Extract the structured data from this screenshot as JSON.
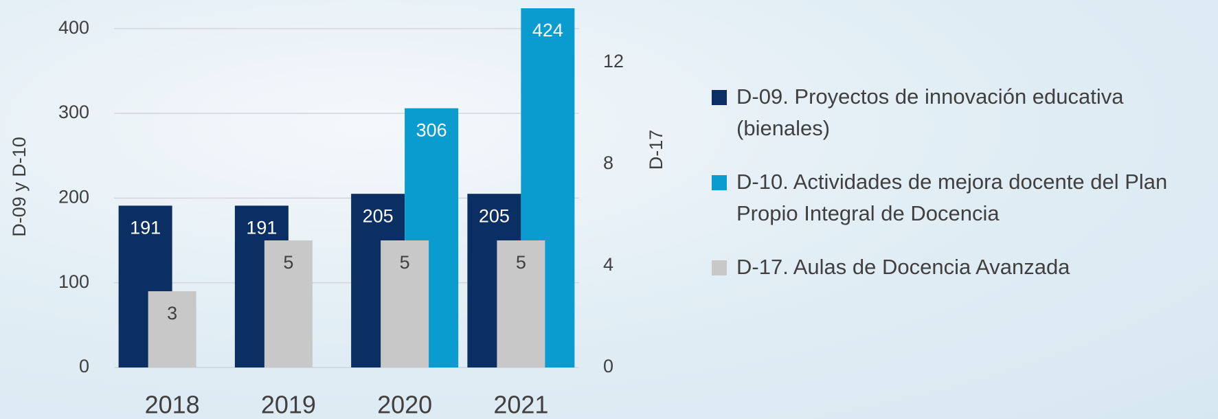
{
  "chart_data": {
    "type": "bar",
    "categories": [
      "2018",
      "2019",
      "2020",
      "2021"
    ],
    "series": [
      {
        "name": "D-09. Proyectos de innovación educativa (bienales)",
        "color": "#0b2f63",
        "values": [
          191,
          191,
          205,
          205
        ]
      },
      {
        "name": "D-10. Actividades de mejora docente del Plan Propio Integral de Docencia",
        "color": "#0a9bcf",
        "values": [
          null,
          null,
          306,
          424
        ]
      },
      {
        "name": "D-17. Aulas de Docencia Avanzada",
        "color": "#c8c8c8",
        "values": [
          3,
          5,
          5,
          5
        ],
        "axis": "y2"
      }
    ],
    "y_label": "D-09 y D-10",
    "y2_label": "D-17",
    "ylim": [
      0,
      450
    ],
    "yticks": [
      0,
      100,
      200,
      300,
      400
    ],
    "y2lim": [
      0,
      15
    ],
    "y2ticks": [
      0,
      4,
      8,
      12
    ],
    "grid": true,
    "legend": "right"
  }
}
